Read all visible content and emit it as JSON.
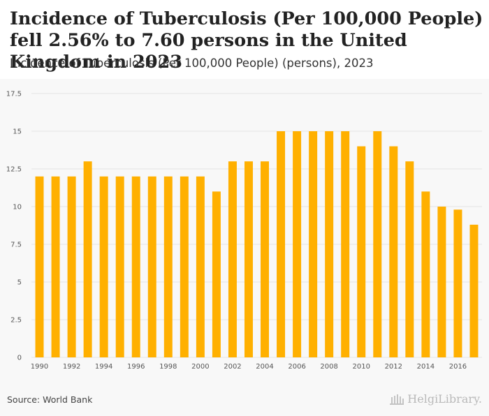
{
  "header": {
    "title": "Incidence of Tuberculosis (Per 100,000 People) fell 2.56% to 7.60 persons in the United Kingdom in 2023",
    "subtitle": "Incidence of Tuberculosis (Per 100,000 People) (persons), 2023"
  },
  "footer": {
    "source": "Source: World Bank",
    "logo_text": "HelgiLibrary."
  },
  "colors": {
    "bar": "#FFB000",
    "grid": "#e3e3e3",
    "axis_text": "#555555",
    "logo": "#b9b9b9"
  },
  "chart_data": {
    "type": "bar",
    "title": "",
    "xlabel": "",
    "ylabel": "",
    "categories": [
      "1990",
      "1991",
      "1992",
      "1993",
      "1994",
      "1995",
      "1996",
      "1997",
      "1998",
      "1999",
      "2000",
      "2001",
      "2002",
      "2003",
      "2004",
      "2005",
      "2006",
      "2007",
      "2008",
      "2009",
      "2010",
      "2011",
      "2012",
      "2013",
      "2014",
      "2015",
      "2016",
      "2017"
    ],
    "values": [
      12,
      12,
      12,
      13,
      12,
      12,
      12,
      12,
      12,
      12,
      12,
      11,
      13,
      13,
      13,
      15,
      15,
      15,
      15,
      15,
      14,
      15,
      14,
      13,
      11,
      10,
      9.8,
      8.8
    ],
    "x_tick_labels": [
      "1990",
      "1992",
      "1994",
      "1996",
      "1998",
      "2000",
      "2002",
      "2004",
      "2006",
      "2008",
      "2010",
      "2012",
      "2014",
      "2016"
    ],
    "y_ticks": [
      0,
      2.5,
      5,
      7.5,
      10,
      12.5,
      15,
      17.5
    ],
    "y_tick_labels": [
      "0",
      "2.5",
      "5",
      "7.5",
      "10",
      "12.5",
      "15",
      "17.5"
    ],
    "ylim": [
      0,
      17.5
    ],
    "grid": true,
    "legend": "none"
  }
}
